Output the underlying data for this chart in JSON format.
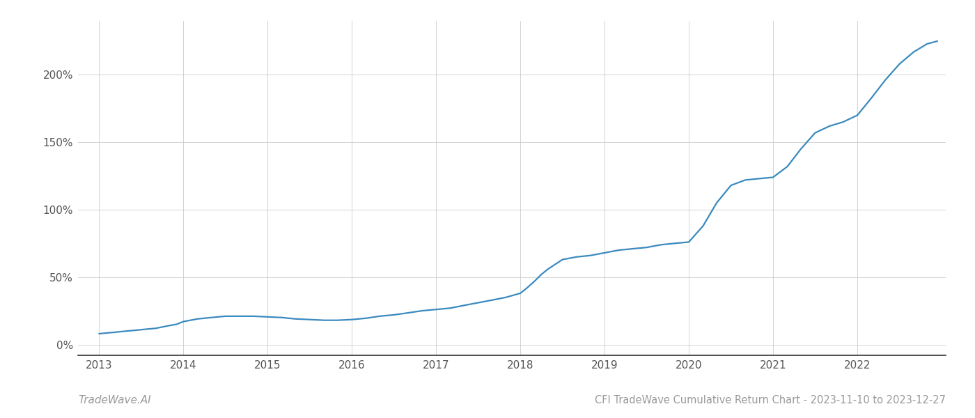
{
  "title": "CFI TradeWave Cumulative Return Chart - 2023-11-10 to 2023-12-27",
  "watermark": "TradeWave.AI",
  "line_color": "#3a8abf",
  "background_color": "#ffffff",
  "grid_color": "#cccccc",
  "x_years": [
    2013,
    2014,
    2015,
    2016,
    2017,
    2018,
    2019,
    2020,
    2021,
    2022
  ],
  "x_data": [
    2013.0,
    2013.08,
    2013.17,
    2013.25,
    2013.33,
    2013.42,
    2013.5,
    2013.58,
    2013.67,
    2013.75,
    2013.83,
    2013.92,
    2014.0,
    2014.17,
    2014.33,
    2014.5,
    2014.67,
    2014.83,
    2015.0,
    2015.17,
    2015.33,
    2015.5,
    2015.67,
    2015.83,
    2016.0,
    2016.17,
    2016.33,
    2016.5,
    2016.67,
    2016.83,
    2017.0,
    2017.17,
    2017.33,
    2017.5,
    2017.67,
    2017.83,
    2018.0,
    2018.08,
    2018.17,
    2018.25,
    2018.33,
    2018.5,
    2018.67,
    2018.83,
    2019.0,
    2019.17,
    2019.33,
    2019.5,
    2019.67,
    2019.83,
    2020.0,
    2020.17,
    2020.33,
    2020.5,
    2020.67,
    2020.83,
    2021.0,
    2021.17,
    2021.33,
    2021.5,
    2021.67,
    2021.83,
    2022.0,
    2022.17,
    2022.33,
    2022.5,
    2022.67,
    2022.83,
    2022.95
  ],
  "y_data": [
    8,
    8.5,
    9,
    9.5,
    10,
    10.5,
    11,
    11.5,
    12,
    13,
    14,
    15,
    17,
    19,
    20,
    21,
    21,
    21,
    20.5,
    20,
    19,
    18.5,
    18,
    18,
    18.5,
    19.5,
    21,
    22,
    23.5,
    25,
    26,
    27,
    29,
    31,
    33,
    35,
    38,
    42,
    47,
    52,
    56,
    63,
    65,
    66,
    68,
    70,
    71,
    72,
    74,
    75,
    76,
    88,
    105,
    118,
    122,
    123,
    124,
    132,
    145,
    157,
    162,
    165,
    170,
    183,
    196,
    208,
    217,
    223,
    225
  ],
  "ylim": [
    -8,
    240
  ],
  "yticks": [
    0,
    50,
    100,
    150,
    200
  ],
  "ytick_labels": [
    "0%",
    "50%",
    "100%",
    "150%",
    "200%"
  ],
  "xlim": [
    2012.75,
    2023.05
  ],
  "line_width": 1.6,
  "title_fontsize": 10.5,
  "tick_fontsize": 11,
  "watermark_fontsize": 11,
  "figsize": [
    14.0,
    6.0
  ],
  "dpi": 100
}
